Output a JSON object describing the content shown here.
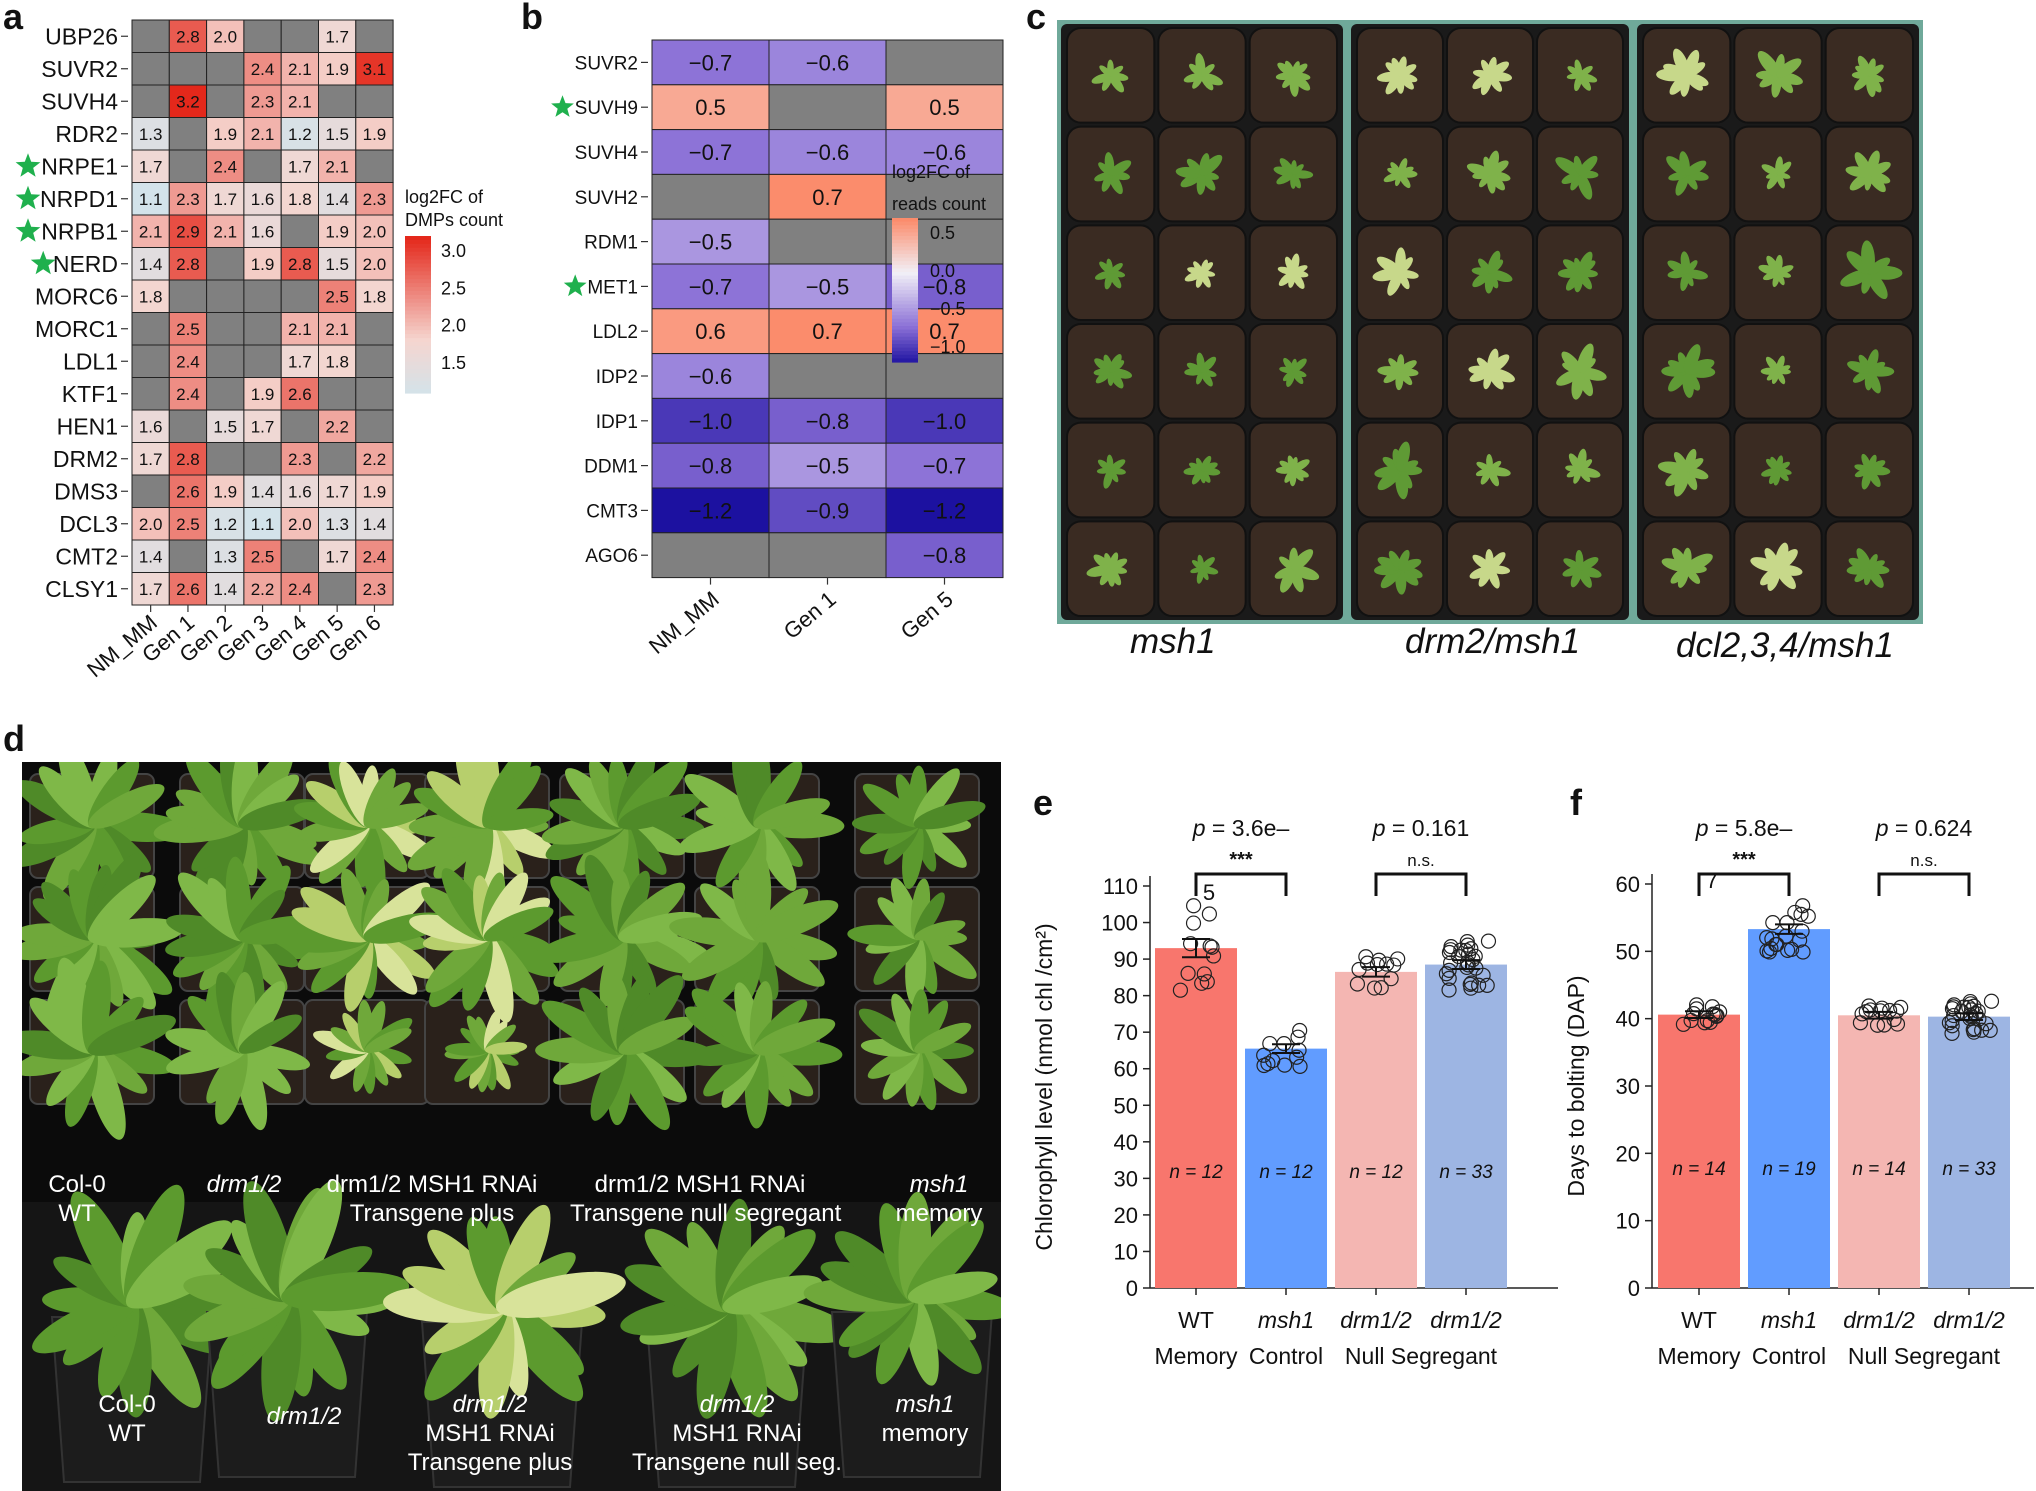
{
  "panels": {
    "a": "a",
    "b": "b",
    "c": "c",
    "d": "d",
    "e": "e",
    "f": "f"
  },
  "panel_a": {
    "genes": [
      "UBP26",
      "SUVR2",
      "SUVH4",
      "RDR2",
      "NRPE1",
      "NRPD1",
      "NRPB1",
      "NERD",
      "MORC6",
      "MORC1",
      "LDL1",
      "KTF1",
      "HEN1",
      "DRM2",
      "DMS3",
      "DCL3",
      "CMT2",
      "CLSY1"
    ],
    "starred": [
      "NRPE1",
      "NRPD1",
      "NRPB1",
      "NERD"
    ],
    "columns": [
      "NM_MM",
      "Gen 1",
      "Gen 2",
      "Gen 3",
      "Gen 4",
      "Gen 5",
      "Gen 6"
    ],
    "values": [
      [
        null,
        2.8,
        2.0,
        null,
        null,
        1.7,
        null
      ],
      [
        null,
        null,
        null,
        2.4,
        2.1,
        1.9,
        3.1
      ],
      [
        null,
        3.2,
        null,
        2.3,
        2.1,
        null,
        null
      ],
      [
        1.3,
        null,
        1.9,
        2.1,
        1.2,
        1.5,
        1.9
      ],
      [
        1.7,
        null,
        2.4,
        null,
        1.7,
        2.1,
        null
      ],
      [
        1.1,
        2.3,
        1.7,
        1.6,
        1.8,
        1.4,
        2.3
      ],
      [
        2.1,
        2.9,
        2.1,
        1.6,
        null,
        1.9,
        2.0
      ],
      [
        1.4,
        2.8,
        null,
        1.9,
        2.8,
        1.5,
        2.0
      ],
      [
        1.8,
        null,
        null,
        null,
        null,
        2.5,
        1.8
      ],
      [
        null,
        2.5,
        null,
        null,
        2.1,
        2.1,
        null
      ],
      [
        null,
        2.4,
        null,
        null,
        1.7,
        1.8,
        null
      ],
      [
        null,
        2.4,
        null,
        1.9,
        2.6,
        null,
        null
      ],
      [
        1.6,
        null,
        1.5,
        1.7,
        null,
        2.2,
        null
      ],
      [
        1.7,
        2.8,
        null,
        null,
        2.3,
        null,
        2.2
      ],
      [
        null,
        2.6,
        1.9,
        1.4,
        1.6,
        1.7,
        1.9
      ],
      [
        2.0,
        2.5,
        1.2,
        1.1,
        2.0,
        1.3,
        1.4
      ],
      [
        1.4,
        null,
        1.3,
        2.5,
        null,
        1.7,
        2.4
      ],
      [
        1.7,
        2.6,
        1.4,
        2.2,
        2.4,
        null,
        2.3
      ]
    ],
    "legend_title_1": "log2FC of",
    "legend_title_2": "DMPs count",
    "legend_ticks": [
      "3.0",
      "2.5",
      "2.0",
      "1.5"
    ]
  },
  "panel_b": {
    "genes": [
      "SUVR2",
      "SUVH9",
      "SUVH4",
      "SUVH2",
      "RDM1",
      "MET1",
      "LDL2",
      "IDP2",
      "IDP1",
      "DDM1",
      "CMT3",
      "AGO6"
    ],
    "starred": [
      "SUVH9",
      "MET1"
    ],
    "columns": [
      "NM_MM",
      "Gen 1",
      "Gen 5"
    ],
    "values": [
      [
        -0.7,
        -0.6,
        null
      ],
      [
        0.5,
        null,
        0.5
      ],
      [
        -0.7,
        -0.6,
        -0.6
      ],
      [
        null,
        0.7,
        null
      ],
      [
        -0.5,
        null,
        null
      ],
      [
        -0.7,
        -0.5,
        -0.8
      ],
      [
        0.6,
        0.7,
        0.7
      ],
      [
        -0.6,
        null,
        null
      ],
      [
        -1.0,
        -0.8,
        -1.0
      ],
      [
        -0.8,
        -0.5,
        -0.7
      ],
      [
        -1.2,
        -0.9,
        -1.2
      ],
      [
        null,
        null,
        -0.8
      ]
    ],
    "labels": [
      [
        "−0.7",
        "−0.6",
        ""
      ],
      [
        "0.5",
        "",
        "0.5"
      ],
      [
        "−0.7",
        "−0.6",
        "−0.6"
      ],
      [
        "",
        "0.7",
        ""
      ],
      [
        "−0.5",
        "",
        ""
      ],
      [
        "−0.7",
        "−0.5",
        "−0.8"
      ],
      [
        "0.6",
        "0.7",
        "0.7"
      ],
      [
        "−0.6",
        "",
        ""
      ],
      [
        "−1.0",
        "−0.8",
        "−1.0"
      ],
      [
        "−0.8",
        "−0.5",
        "−0.7"
      ],
      [
        "−1.2",
        "−0.9",
        "−1.2"
      ],
      [
        "",
        "",
        "−0.8"
      ]
    ],
    "legend_title_1": "log2FC of",
    "legend_title_2": "reads count",
    "legend_ticks": [
      "0.5",
      "0.0",
      "−0.5",
      "−1.0"
    ]
  },
  "panel_c": {
    "genotypes": [
      "msh1",
      "drm2/msh1",
      "dcl2,3,4/msh1"
    ]
  },
  "panel_d": {
    "top_captions": [
      {
        "l1": "Col-0",
        "l2": "WT"
      },
      {
        "l1": "drm1/2",
        "l2": ""
      },
      {
        "l1": "drm1/2 MSH1 RNAi",
        "l2": "Transgene plus"
      },
      {
        "l1": "drm1/2 MSH1 RNAi",
        "l2": "Transgene null segregant"
      },
      {
        "l1": "msh1",
        "l2": "memory"
      }
    ],
    "bottom_captions": [
      {
        "l1": "Col-0",
        "l2": "WT",
        "l3": ""
      },
      {
        "l1": "drm1/2",
        "l2": "",
        "l3": ""
      },
      {
        "l1": "drm1/2",
        "l2": "MSH1 RNAi",
        "l3": "Transgene plus"
      },
      {
        "l1": "drm1/2",
        "l2": "MSH1 RNAi",
        "l3": "Transgene null seg."
      },
      {
        "l1": "msh1",
        "l2": "memory",
        "l3": ""
      }
    ]
  },
  "chart_data": [
    {
      "panel": "e",
      "type": "bar",
      "categories": [
        "WT",
        "msh1",
        "drm1/2",
        "drm1/2"
      ],
      "group_labels": [
        "Memory",
        "Control",
        "Null Segregant"
      ],
      "values": [
        93,
        65.5,
        86.5,
        88.5
      ],
      "errors": [
        2.5,
        1.2,
        1.3,
        1.2
      ],
      "n": [
        "n = 12",
        "n = 12",
        "n = 12",
        "n = 33"
      ],
      "colors": [
        "#F8766D",
        "#619CFF",
        "#F4B6B2",
        "#9DB5E3"
      ],
      "ylabel": "Chlorophyll level (nmol chl /cm²)",
      "ylim": [
        0,
        110
      ],
      "yticks": [
        0,
        10,
        20,
        30,
        40,
        50,
        60,
        70,
        80,
        90,
        100,
        110
      ],
      "p_values": [
        "p = 3.6e–",
        "p = 0.161"
      ],
      "p_exponent": "5",
      "significance": [
        "***",
        "n.s."
      ]
    },
    {
      "panel": "f",
      "type": "bar",
      "categories": [
        "WT",
        "msh1",
        "drm1/2",
        "drm1/2"
      ],
      "group_labels": [
        "Memory",
        "Control",
        "Null Segregant"
      ],
      "values": [
        40.6,
        53.3,
        40.5,
        40.3
      ],
      "errors": [
        0.5,
        0.7,
        0.5,
        0.5
      ],
      "n": [
        "n = 14",
        "n = 19",
        "n = 14",
        "n = 33"
      ],
      "colors": [
        "#F8766D",
        "#619CFF",
        "#F4B6B2",
        "#9DB5E3"
      ],
      "ylabel": "Days to bolting (DAP)",
      "ylim": [
        0,
        60
      ],
      "yticks": [
        0,
        10,
        20,
        30,
        40,
        50,
        60
      ],
      "p_values": [
        "p = 5.8e–",
        "p = 0.624"
      ],
      "p_exponent": "7",
      "significance": [
        "***",
        "n.s."
      ]
    }
  ]
}
